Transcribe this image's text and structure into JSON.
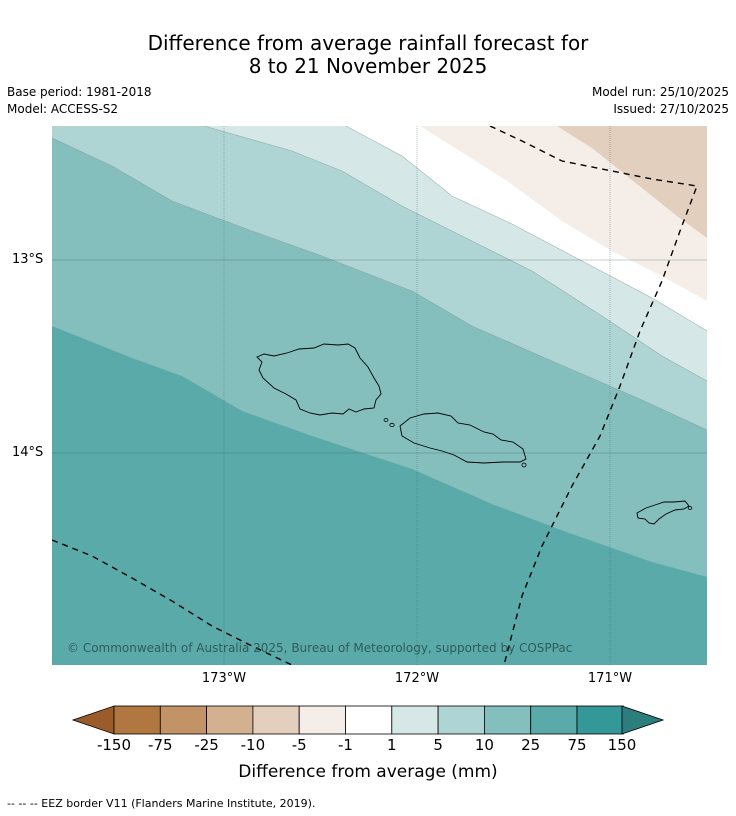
{
  "title_line1": "Difference from average rainfall forecast for",
  "title_line2": "8 to 21 November 2025",
  "base_period": "Base period: 1981-2018",
  "model": "Model: ACCESS-S2",
  "model_run": "Model run: 25/10/2025",
  "issued": "Issued: 27/10/2025",
  "lat_ticks": [
    "13°S",
    "14°S"
  ],
  "lon_ticks": [
    "173°W",
    "172°W",
    "171°W"
  ],
  "copyright": "© Commonwealth of Australia 2025, Bureau of Meteorology, supported by COSPPac",
  "colorbar": {
    "labels": [
      "-150",
      "-75",
      "-25",
      "-10",
      "-5",
      "-1",
      "1",
      "5",
      "10",
      "25",
      "75",
      "150"
    ],
    "colors": [
      "#9b5c2b",
      "#b07840",
      "#c29366",
      "#d3b090",
      "#e2cfbd",
      "#f4ede8",
      "#ffffff",
      "#d5e8e7",
      "#aed5d4",
      "#84bfbe",
      "#5baaaa",
      "#349898",
      "#2e7d7d"
    ],
    "title": "Difference from average (mm)"
  },
  "legend_footer": "--  --  -- EEZ border V11 (Flanders Marine Institute, 2019)."
}
